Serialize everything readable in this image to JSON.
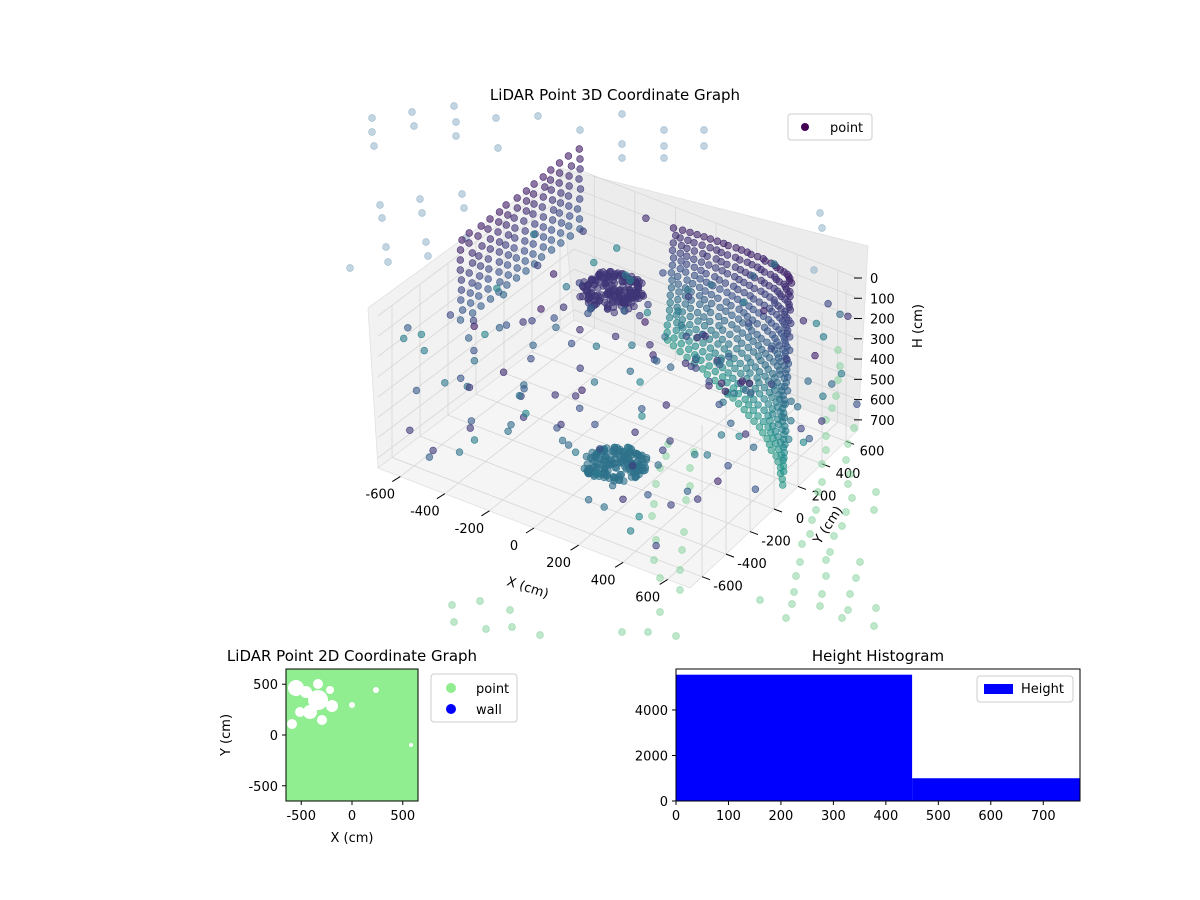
{
  "chart_data": [
    {
      "type": "scatter3d",
      "title": "LiDAR Point 3D Coordinate Graph",
      "xlabel": "X (cm)",
      "ylabel": "Y (cm)",
      "zlabel": "H (cm)",
      "x_ticks": [
        -600,
        -400,
        -200,
        0,
        200,
        400,
        600
      ],
      "y_ticks": [
        -600,
        -400,
        -200,
        0,
        200,
        400,
        600
      ],
      "z_ticks": [
        0,
        100,
        200,
        300,
        400,
        500,
        600,
        700
      ],
      "z_inverted": true,
      "legend": {
        "entries": [
          "point"
        ],
        "placement": "upper-right"
      },
      "grid": true,
      "colormap": "viridis",
      "description_series": [
        {
          "name": "point",
          "clusters": [
            {
              "label": "curved wall",
              "x_range": [
                200,
                650
              ],
              "y_range": [
                -200,
                650
              ],
              "h_range": [
                0,
                750
              ],
              "color": "#440154"
            },
            {
              "label": "left wall",
              "x_range": [
                -650,
                -200
              ],
              "y_range": [
                100,
                650
              ],
              "h_range": [
                100,
                700
              ],
              "color": "#440154"
            },
            {
              "label": "dense cluster high",
              "x_center": -50,
              "y_center": 200,
              "h_center": 200,
              "color": "#440154"
            },
            {
              "label": "dense cluster low",
              "x_center": -100,
              "y_center": -300,
              "h_center": 650,
              "color": "#3b4a8a"
            }
          ]
        }
      ]
    },
    {
      "type": "scatter",
      "title": "LiDAR Point 2D Coordinate Graph",
      "xlabel": "X (cm)",
      "ylabel": "Y (cm)",
      "x_ticks": [
        -500,
        0,
        500
      ],
      "y_ticks": [
        -500,
        0,
        500
      ],
      "xlim": [
        -650,
        650
      ],
      "ylim": [
        -650,
        650
      ],
      "legend": {
        "entries": [
          {
            "name": "point",
            "color": "#90ee90"
          },
          {
            "name": "wall",
            "color": "#0000ff"
          }
        ],
        "placement": "outside-right"
      }
    },
    {
      "type": "histogram",
      "title": "Height Histogram",
      "x_ticks": [
        0,
        100,
        200,
        300,
        400,
        500,
        600,
        700
      ],
      "y_ticks": [
        0,
        2000,
        4000
      ],
      "xlim": [
        0,
        770
      ],
      "ylim": [
        0,
        5800
      ],
      "bins": [
        {
          "x0": 0,
          "x1": 450,
          "count": 5550
        },
        {
          "x0": 450,
          "x1": 770,
          "count": 1000
        }
      ],
      "color": "#0000ff",
      "legend": {
        "entries": [
          "Height"
        ],
        "placement": "upper-right"
      }
    }
  ]
}
